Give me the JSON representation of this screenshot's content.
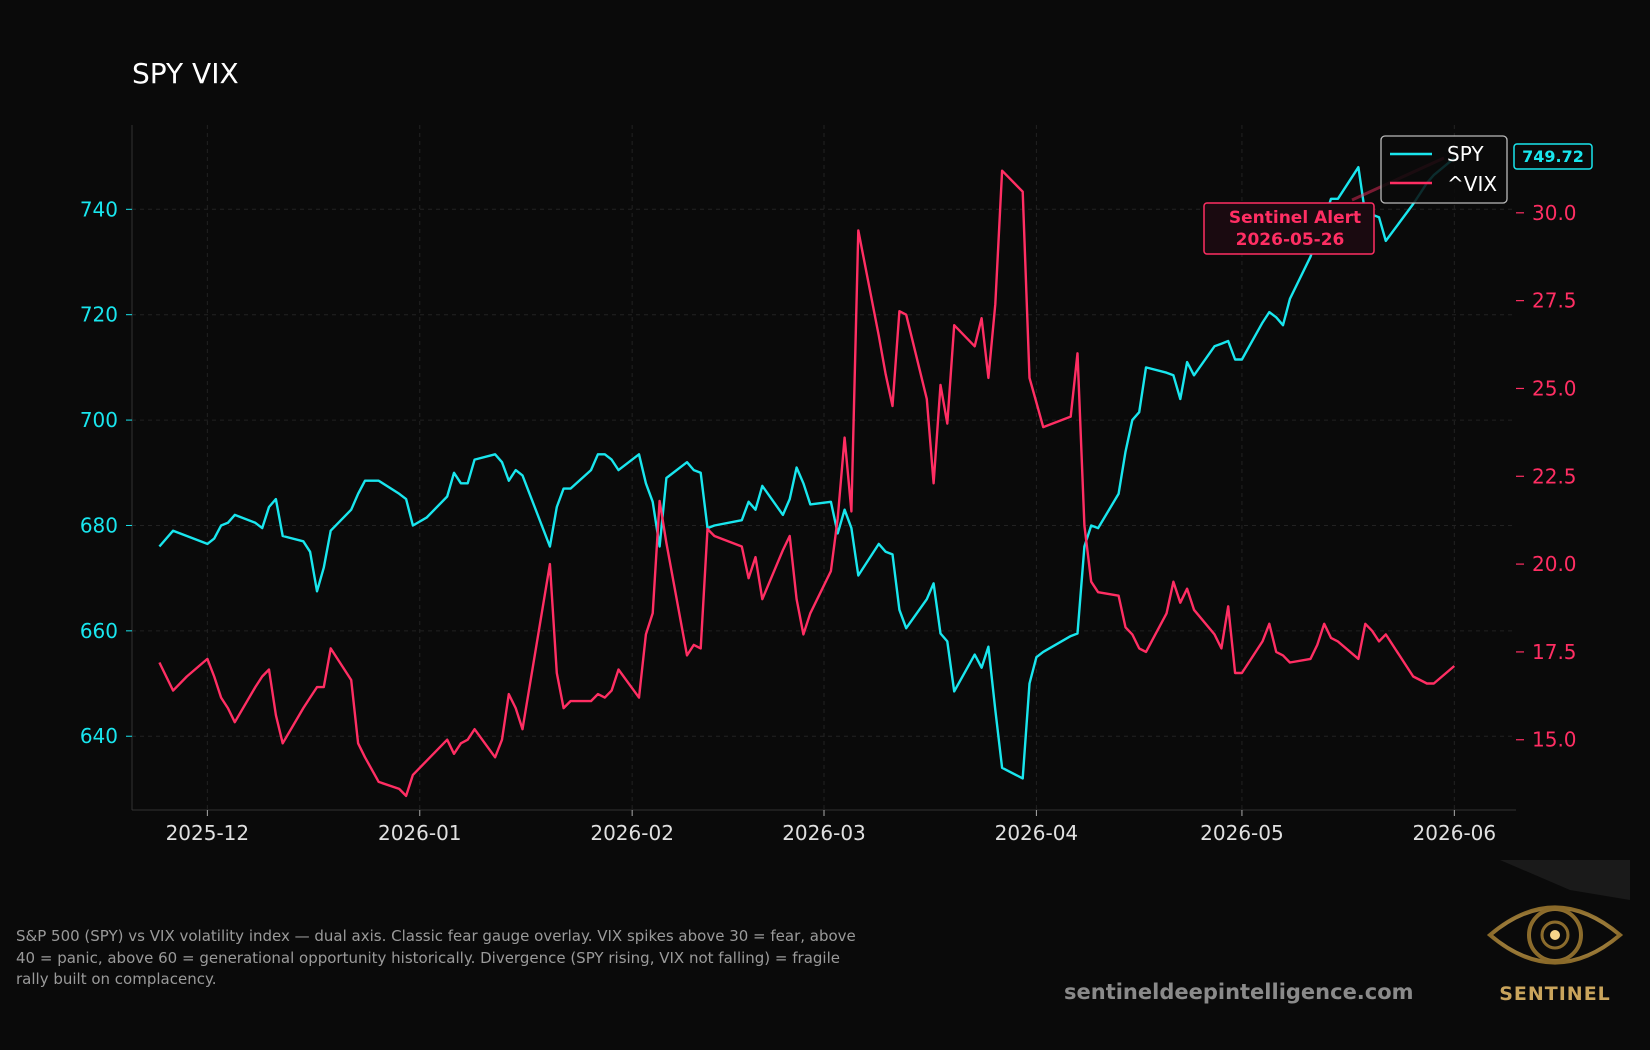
{
  "chart_data": {
    "type": "line",
    "title": "SPY VIX",
    "xlabel": "",
    "ylabel_left": "",
    "ylabel_right": "",
    "xlim": [
      "2025-11-20",
      "2026-06-10"
    ],
    "ylim_left": [
      626,
      756
    ],
    "ylim_right": [
      13.0,
      32.5
    ],
    "grid": true,
    "legend": "top-right",
    "x_ticks": [
      "2025-12-01",
      "2026-01-01",
      "2026-02-01",
      "2026-03-01",
      "2026-04-01",
      "2026-05-01",
      "2026-06-01"
    ],
    "x_tick_labels": [
      "2025-12",
      "2026-01",
      "2026-02",
      "2026-03",
      "2026-04",
      "2026-05",
      "2026-06"
    ],
    "y_ticks_left": [
      640,
      660,
      680,
      700,
      720,
      740
    ],
    "y_ticks_right": [
      15.0,
      17.5,
      20.0,
      22.5,
      25.0,
      27.5,
      30.0
    ],
    "y_tick_labels_right": [
      "15.0",
      "17.5",
      "20.0",
      "22.5",
      "25.0",
      "27.5",
      "30.0"
    ],
    "series": [
      {
        "name": "SPY",
        "axis": "left",
        "color": "#19e6ee",
        "points": [
          [
            "2025-11-24",
            676
          ],
          [
            "2025-11-26",
            679
          ],
          [
            "2025-11-28",
            678
          ],
          [
            "2025-12-01",
            676.5
          ],
          [
            "2025-12-02",
            677.5
          ],
          [
            "2025-12-03",
            680
          ],
          [
            "2025-12-04",
            680.5
          ],
          [
            "2025-12-05",
            682
          ],
          [
            "2025-12-08",
            680.5
          ],
          [
            "2025-12-09",
            679.5
          ],
          [
            "2025-12-10",
            683.5
          ],
          [
            "2025-12-11",
            685
          ],
          [
            "2025-12-12",
            678
          ],
          [
            "2025-12-15",
            677
          ],
          [
            "2025-12-16",
            675
          ],
          [
            "2025-12-17",
            667.5
          ],
          [
            "2025-12-18",
            672
          ],
          [
            "2025-12-19",
            679
          ],
          [
            "2025-12-22",
            683
          ],
          [
            "2025-12-23",
            686
          ],
          [
            "2025-12-24",
            688.5
          ],
          [
            "2025-12-26",
            688.5
          ],
          [
            "2025-12-29",
            686
          ],
          [
            "2025-12-30",
            685
          ],
          [
            "2025-12-31",
            680
          ],
          [
            "2026-01-02",
            681.5
          ],
          [
            "2026-01-05",
            685.5
          ],
          [
            "2026-01-06",
            690
          ],
          [
            "2026-01-07",
            688
          ],
          [
            "2026-01-08",
            688
          ],
          [
            "2026-01-09",
            692.5
          ],
          [
            "2026-01-12",
            693.5
          ],
          [
            "2026-01-13",
            692
          ],
          [
            "2026-01-14",
            688.5
          ],
          [
            "2026-01-15",
            690.5
          ],
          [
            "2026-01-16",
            689.5
          ],
          [
            "2026-01-20",
            676
          ],
          [
            "2026-01-21",
            683.5
          ],
          [
            "2026-01-22",
            687
          ],
          [
            "2026-01-23",
            687
          ],
          [
            "2026-01-26",
            690.5
          ],
          [
            "2026-01-27",
            693.5
          ],
          [
            "2026-01-28",
            693.5
          ],
          [
            "2026-01-29",
            692.5
          ],
          [
            "2026-01-30",
            690.5
          ],
          [
            "2026-02-02",
            693.5
          ],
          [
            "2026-02-03",
            688
          ],
          [
            "2026-02-04",
            684.5
          ],
          [
            "2026-02-05",
            676
          ],
          [
            "2026-02-06",
            689
          ],
          [
            "2026-02-09",
            692
          ],
          [
            "2026-02-10",
            690.5
          ],
          [
            "2026-02-11",
            690
          ],
          [
            "2026-02-12",
            679.5
          ],
          [
            "2026-02-13",
            680
          ],
          [
            "2026-02-17",
            681
          ],
          [
            "2026-02-18",
            684.5
          ],
          [
            "2026-02-19",
            683
          ],
          [
            "2026-02-20",
            687.5
          ],
          [
            "2026-02-23",
            682
          ],
          [
            "2026-02-24",
            685
          ],
          [
            "2026-02-25",
            691
          ],
          [
            "2026-02-26",
            688
          ],
          [
            "2026-02-27",
            684
          ],
          [
            "2026-03-02",
            684.5
          ],
          [
            "2026-03-03",
            678.5
          ],
          [
            "2026-03-04",
            683
          ],
          [
            "2026-03-05",
            679.5
          ],
          [
            "2026-03-06",
            670.5
          ],
          [
            "2026-03-09",
            676.5
          ],
          [
            "2026-03-10",
            675
          ],
          [
            "2026-03-11",
            674.5
          ],
          [
            "2026-03-12",
            664
          ],
          [
            "2026-03-13",
            660.5
          ],
          [
            "2026-03-16",
            666
          ],
          [
            "2026-03-17",
            669
          ],
          [
            "2026-03-18",
            659.5
          ],
          [
            "2026-03-19",
            658
          ],
          [
            "2026-03-20",
            648.5
          ],
          [
            "2026-03-23",
            655.5
          ],
          [
            "2026-03-24",
            653
          ],
          [
            "2026-03-25",
            657
          ],
          [
            "2026-03-26",
            645
          ],
          [
            "2026-03-27",
            634
          ],
          [
            "2026-03-30",
            632
          ],
          [
            "2026-03-31",
            650
          ],
          [
            "2026-04-01",
            655
          ],
          [
            "2026-04-02",
            656
          ],
          [
            "2026-04-06",
            659
          ],
          [
            "2026-04-07",
            659.5
          ],
          [
            "2026-04-08",
            676
          ],
          [
            "2026-04-09",
            680
          ],
          [
            "2026-04-10",
            679.5
          ],
          [
            "2026-04-13",
            686
          ],
          [
            "2026-04-14",
            694
          ],
          [
            "2026-04-15",
            700
          ],
          [
            "2026-04-16",
            701.5
          ],
          [
            "2026-04-17",
            710
          ],
          [
            "2026-04-20",
            709
          ],
          [
            "2026-04-21",
            708.5
          ],
          [
            "2026-04-22",
            704
          ],
          [
            "2026-04-23",
            711
          ],
          [
            "2026-04-24",
            708.5
          ],
          [
            "2026-04-27",
            714
          ],
          [
            "2026-04-28",
            714.5
          ],
          [
            "2026-04-29",
            715
          ],
          [
            "2026-04-30",
            711.5
          ],
          [
            "2026-05-01",
            711.5
          ],
          [
            "2026-05-04",
            718.5
          ],
          [
            "2026-05-05",
            720.5
          ],
          [
            "2026-05-06",
            719.5
          ],
          [
            "2026-05-07",
            718
          ],
          [
            "2026-05-08",
            723
          ],
          [
            "2026-05-11",
            731
          ],
          [
            "2026-05-12",
            735
          ],
          [
            "2026-05-13",
            738
          ],
          [
            "2026-05-14",
            742
          ],
          [
            "2026-05-15",
            742
          ],
          [
            "2026-05-18",
            748
          ],
          [
            "2026-05-19",
            739
          ],
          [
            "2026-05-20",
            739
          ],
          [
            "2026-05-21",
            738.5
          ],
          [
            "2026-05-22",
            734
          ],
          [
            "2026-05-26",
            741
          ],
          [
            "2026-05-27",
            743
          ],
          [
            "2026-05-28",
            745
          ],
          [
            "2026-05-29",
            746.5
          ],
          [
            "2026-06-01",
            749.72
          ]
        ]
      },
      {
        "name": "^VIX",
        "axis": "right",
        "color": "#ff2e63",
        "points": [
          [
            "2025-11-24",
            17.2
          ],
          [
            "2025-11-26",
            16.4
          ],
          [
            "2025-11-28",
            16.8
          ],
          [
            "2025-12-01",
            17.3
          ],
          [
            "2025-12-02",
            16.8
          ],
          [
            "2025-12-03",
            16.2
          ],
          [
            "2025-12-04",
            15.9
          ],
          [
            "2025-12-05",
            15.5
          ],
          [
            "2025-12-08",
            16.5
          ],
          [
            "2025-12-09",
            16.8
          ],
          [
            "2025-12-10",
            17.0
          ],
          [
            "2025-12-11",
            15.7
          ],
          [
            "2025-12-12",
            14.9
          ],
          [
            "2025-12-15",
            15.9
          ],
          [
            "2025-12-16",
            16.2
          ],
          [
            "2025-12-17",
            16.5
          ],
          [
            "2025-12-18",
            16.5
          ],
          [
            "2025-12-19",
            17.6
          ],
          [
            "2025-12-22",
            16.7
          ],
          [
            "2025-12-23",
            14.9
          ],
          [
            "2025-12-24",
            14.5
          ],
          [
            "2025-12-26",
            13.8
          ],
          [
            "2025-12-29",
            13.6
          ],
          [
            "2025-12-30",
            13.4
          ],
          [
            "2025-12-31",
            14.0
          ],
          [
            "2026-01-02",
            14.4
          ],
          [
            "2026-01-05",
            15.0
          ],
          [
            "2026-01-06",
            14.6
          ],
          [
            "2026-01-07",
            14.9
          ],
          [
            "2026-01-08",
            15.0
          ],
          [
            "2026-01-09",
            15.3
          ],
          [
            "2026-01-12",
            14.5
          ],
          [
            "2026-01-13",
            15.0
          ],
          [
            "2026-01-14",
            16.3
          ],
          [
            "2026-01-15",
            15.9
          ],
          [
            "2026-01-16",
            15.3
          ],
          [
            "2026-01-20",
            20.0
          ],
          [
            "2026-01-21",
            16.9
          ],
          [
            "2026-01-22",
            15.9
          ],
          [
            "2026-01-23",
            16.1
          ],
          [
            "2026-01-26",
            16.1
          ],
          [
            "2026-01-27",
            16.3
          ],
          [
            "2026-01-28",
            16.2
          ],
          [
            "2026-01-29",
            16.4
          ],
          [
            "2026-01-30",
            17.0
          ],
          [
            "2026-02-02",
            16.2
          ],
          [
            "2026-02-03",
            18.0
          ],
          [
            "2026-02-04",
            18.6
          ],
          [
            "2026-02-05",
            21.8
          ],
          [
            "2026-02-06",
            20.6
          ],
          [
            "2026-02-09",
            17.4
          ],
          [
            "2026-02-10",
            17.7
          ],
          [
            "2026-02-11",
            17.6
          ],
          [
            "2026-02-12",
            21.0
          ],
          [
            "2026-02-13",
            20.8
          ],
          [
            "2026-02-17",
            20.5
          ],
          [
            "2026-02-18",
            19.6
          ],
          [
            "2026-02-19",
            20.2
          ],
          [
            "2026-02-20",
            19.0
          ],
          [
            "2026-02-23",
            20.4
          ],
          [
            "2026-02-24",
            20.8
          ],
          [
            "2026-02-25",
            19.0
          ],
          [
            "2026-02-26",
            18.0
          ],
          [
            "2026-02-27",
            18.6
          ],
          [
            "2026-03-02",
            19.8
          ],
          [
            "2026-03-03",
            21.3
          ],
          [
            "2026-03-04",
            23.6
          ],
          [
            "2026-03-05",
            21.5
          ],
          [
            "2026-03-06",
            29.5
          ],
          [
            "2026-03-09",
            26.5
          ],
          [
            "2026-03-10",
            25.4
          ],
          [
            "2026-03-11",
            24.5
          ],
          [
            "2026-03-12",
            27.2
          ],
          [
            "2026-03-13",
            27.1
          ],
          [
            "2026-03-16",
            24.7
          ],
          [
            "2026-03-17",
            22.3
          ],
          [
            "2026-03-18",
            25.1
          ],
          [
            "2026-03-19",
            24.0
          ],
          [
            "2026-03-20",
            26.8
          ],
          [
            "2026-03-23",
            26.2
          ],
          [
            "2026-03-24",
            27.0
          ],
          [
            "2026-03-25",
            25.3
          ],
          [
            "2026-03-26",
            27.4
          ],
          [
            "2026-03-27",
            31.2
          ],
          [
            "2026-03-30",
            30.6
          ],
          [
            "2026-03-31",
            25.3
          ],
          [
            "2026-04-01",
            24.6
          ],
          [
            "2026-04-02",
            23.9
          ],
          [
            "2026-04-06",
            24.2
          ],
          [
            "2026-04-07",
            26.0
          ],
          [
            "2026-04-08",
            21.1
          ],
          [
            "2026-04-09",
            19.5
          ],
          [
            "2026-04-10",
            19.2
          ],
          [
            "2026-04-13",
            19.1
          ],
          [
            "2026-04-14",
            18.2
          ],
          [
            "2026-04-15",
            18.0
          ],
          [
            "2026-04-16",
            17.6
          ],
          [
            "2026-04-17",
            17.5
          ],
          [
            "2026-04-20",
            18.6
          ],
          [
            "2026-04-21",
            19.5
          ],
          [
            "2026-04-22",
            18.9
          ],
          [
            "2026-04-23",
            19.3
          ],
          [
            "2026-04-24",
            18.7
          ],
          [
            "2026-04-27",
            18.0
          ],
          [
            "2026-04-28",
            17.6
          ],
          [
            "2026-04-29",
            18.8
          ],
          [
            "2026-04-30",
            16.9
          ],
          [
            "2026-05-01",
            16.9
          ],
          [
            "2026-05-04",
            17.8
          ],
          [
            "2026-05-05",
            18.3
          ],
          [
            "2026-05-06",
            17.5
          ],
          [
            "2026-05-07",
            17.4
          ],
          [
            "2026-05-08",
            17.2
          ],
          [
            "2026-05-11",
            17.3
          ],
          [
            "2026-05-12",
            17.7
          ],
          [
            "2026-05-13",
            18.3
          ],
          [
            "2026-05-14",
            17.9
          ],
          [
            "2026-05-15",
            17.8
          ],
          [
            "2026-05-18",
            17.3
          ],
          [
            "2026-05-19",
            18.3
          ],
          [
            "2026-05-20",
            18.1
          ],
          [
            "2026-05-21",
            17.8
          ],
          [
            "2026-05-22",
            18.0
          ],
          [
            "2026-05-26",
            16.8
          ],
          [
            "2026-05-27",
            16.7
          ],
          [
            "2026-05-28",
            16.6
          ],
          [
            "2026-05-29",
            16.6
          ],
          [
            "2026-06-01",
            17.1
          ]
        ]
      }
    ],
    "last_value_label": "749.72",
    "annotation": {
      "line1": "Sentinel Alert",
      "line2": "2026-05-26"
    },
    "caption": "S&P 500 (SPY) vs VIX volatility index — dual axis. Classic fear gauge overlay. VIX spikes above 30 = fear, above 40 = panic, above 60 = generational opportunity historically. Divergence (SPY rising, VIX not falling) = fragile rally built on complacency.",
    "website": "sentineldeepintelligence.com",
    "logo_text": "SENTINEL",
    "colors": {
      "background": "#0a0a0a",
      "spy": "#19e6ee",
      "vix": "#ff2e63",
      "grid": "#222222"
    }
  }
}
